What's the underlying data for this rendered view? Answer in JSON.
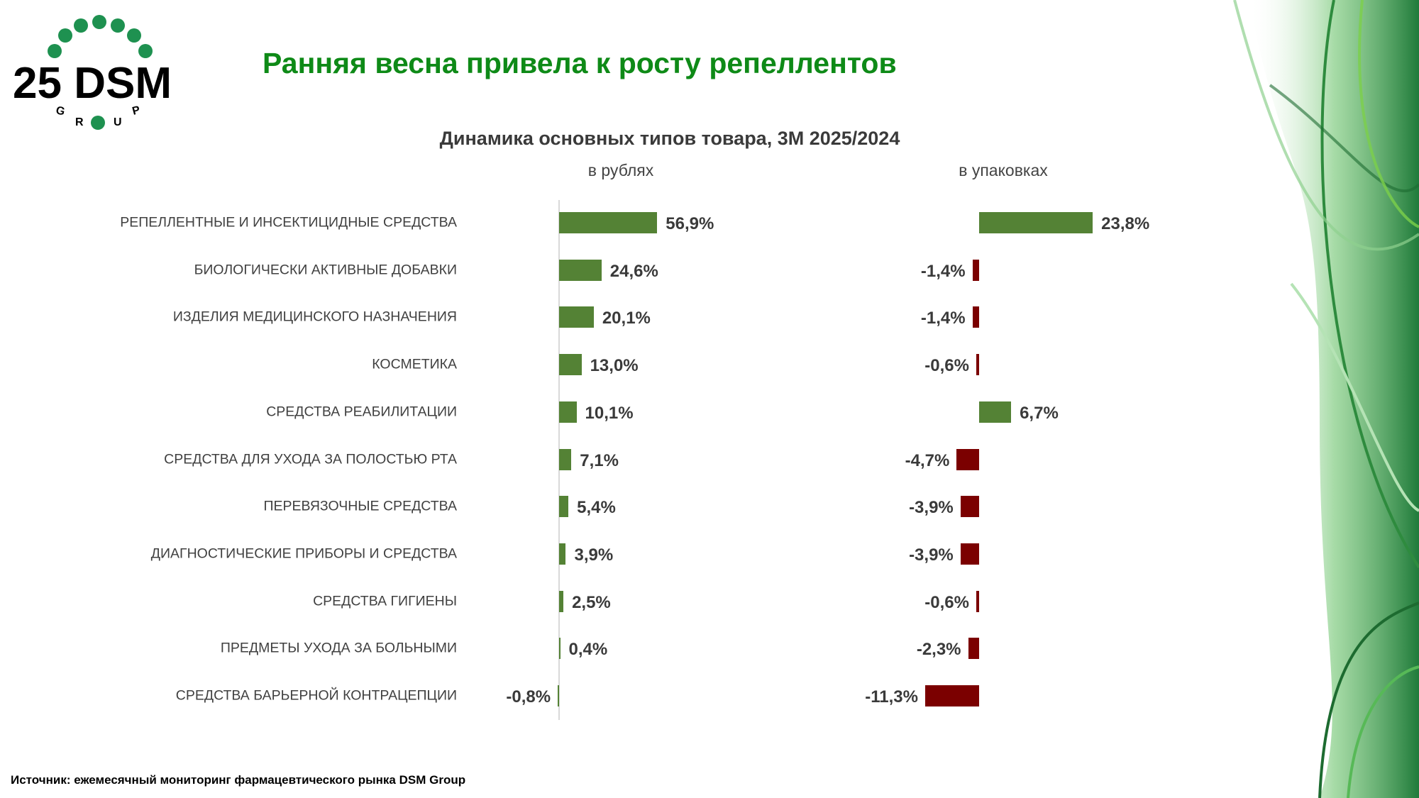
{
  "logo": {
    "text": "25 DSM",
    "subtext": "GROUP"
  },
  "title": "Ранняя весна привела к росту репеллентов",
  "chart_data": {
    "type": "bar",
    "orientation": "horizontal",
    "title": "Динамика основных типов товара, 3М 2025/2024",
    "categories": [
      "РЕПЕЛЛЕНТНЫЕ И ИНСЕКТИЦИДНЫЕ СРЕДСТВА",
      "БИОЛОГИЧЕСКИ АКТИВНЫЕ ДОБАВКИ",
      "ИЗДЕЛИЯ МЕДИЦИНСКОГО НАЗНАЧЕНИЯ",
      "КОСМЕТИКА",
      "СРЕДСТВА РЕАБИЛИТАЦИИ",
      "СРЕДСТВА ДЛЯ УХОДА ЗА ПОЛОСТЬЮ РТА",
      "ПЕРЕВЯЗОЧНЫЕ СРЕДСТВА",
      "ДИАГНОСТИЧЕСКИЕ ПРИБОРЫ И СРЕДСТВА",
      "СРЕДСТВА ГИГИЕНЫ",
      "ПРЕДМЕТЫ УХОДА ЗА БОЛЬНЫМИ",
      "СРЕДСТВА БАРЬЕРНОЙ КОНТРАЦЕПЦИИ"
    ],
    "series": [
      {
        "name": "в рублях",
        "values": [
          56.9,
          24.6,
          20.1,
          13.0,
          10.1,
          7.1,
          5.4,
          3.9,
          2.5,
          0.4,
          -0.8
        ],
        "labels": [
          "56,9%",
          "24,6%",
          "20,1%",
          "13,0%",
          "10,1%",
          "7,1%",
          "5,4%",
          "3,9%",
          "2,5%",
          "0,4%",
          "-0,8%"
        ]
      },
      {
        "name": "в упаковках",
        "values": [
          23.8,
          -1.4,
          -1.4,
          -0.6,
          6.7,
          -4.7,
          -3.9,
          -3.9,
          -0.6,
          -2.3,
          -11.3
        ],
        "labels": [
          "23,8%",
          "-1,4%",
          "-1,4%",
          "-0,6%",
          "6,7%",
          "-4,7%",
          "-3,9%",
          "-3,9%",
          "-0,6%",
          "-2,3%",
          "-11,3%"
        ]
      }
    ],
    "colors": {
      "positive": "#548235",
      "negative": "#7b0000"
    },
    "grid": false,
    "legend": "none"
  },
  "source": "Источник: ежемесячный мониторинг фармацевтического рынка DSM Group"
}
